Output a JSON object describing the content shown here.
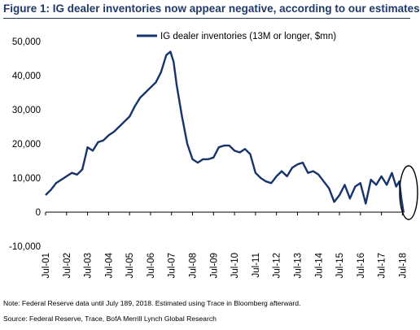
{
  "title": "Figure 1: IG dealer inventories now appear negative, according to our estimates",
  "note": "Note: Federal Reserve data until July 189, 2018. Estimated using Trace in Bloomberg afterward.",
  "source": "Source: Federal Reserve, Trace, BofA Merrill Lynch Global Research",
  "colors": {
    "series": "#16336b",
    "title": "#1f3a68"
  },
  "chart_data": {
    "type": "line",
    "title": "Figure 1: IG dealer inventories now appear negative, according to our estimates",
    "xlabel": "",
    "ylabel": "",
    "ylim": [
      -10000,
      50000
    ],
    "yticks": [
      -10000,
      0,
      10000,
      20000,
      30000,
      40000,
      50000
    ],
    "ytick_labels": [
      "-10,000",
      "0",
      "10,000",
      "20,000",
      "30,000",
      "40,000",
      "50,000"
    ],
    "xlim": [
      2001.5,
      2018.6
    ],
    "xticks": [
      2001.5,
      2002.5,
      2003.5,
      2004.5,
      2005.5,
      2006.5,
      2007.5,
      2008.5,
      2009.5,
      2010.5,
      2011.5,
      2012.5,
      2013.5,
      2014.5,
      2015.5,
      2016.5,
      2017.5,
      2018.5
    ],
    "xtick_labels": [
      "Jul-01",
      "Jul-02",
      "Jul-03",
      "Jul-04",
      "Jul-05",
      "Jul-06",
      "Jul-07",
      "Jul-08",
      "Jul-09",
      "Jul-10",
      "Jul-11",
      "Jul-12",
      "Jul-13",
      "Jul-14",
      "Jul-15",
      "Jul-16",
      "Jul-17",
      "Jul-18"
    ],
    "grid": false,
    "legend": "top-center",
    "annotation": "ellipse around the final values (mid-2018)",
    "series": [
      {
        "name": "IG dealer inventories (13M or longer, $mn)",
        "color": "#16336b",
        "x": [
          2001.5,
          2001.75,
          2002.0,
          2002.25,
          2002.5,
          2002.75,
          2003.0,
          2003.25,
          2003.5,
          2003.75,
          2004.0,
          2004.25,
          2004.5,
          2004.75,
          2005.0,
          2005.25,
          2005.5,
          2005.75,
          2006.0,
          2006.25,
          2006.5,
          2006.75,
          2007.0,
          2007.25,
          2007.45,
          2007.6,
          2007.75,
          2008.0,
          2008.25,
          2008.5,
          2008.75,
          2009.0,
          2009.25,
          2009.5,
          2009.75,
          2010.0,
          2010.25,
          2010.5,
          2010.75,
          2011.0,
          2011.25,
          2011.5,
          2011.75,
          2012.0,
          2012.25,
          2012.5,
          2012.75,
          2013.0,
          2013.25,
          2013.5,
          2013.75,
          2014.0,
          2014.25,
          2014.5,
          2014.75,
          2015.0,
          2015.25,
          2015.5,
          2015.75,
          2016.0,
          2016.25,
          2016.5,
          2016.75,
          2017.0,
          2017.25,
          2017.5,
          2017.75,
          2018.0,
          2018.2,
          2018.35,
          2018.45,
          2018.55
        ],
        "values": [
          5000,
          6500,
          8500,
          9500,
          10500,
          11500,
          11000,
          12500,
          19000,
          18000,
          20500,
          21000,
          22500,
          23500,
          25000,
          26500,
          28000,
          31000,
          33500,
          35000,
          36500,
          38000,
          41000,
          46000,
          47000,
          44000,
          37000,
          28000,
          20000,
          15500,
          14500,
          15500,
          15500,
          16000,
          19000,
          19500,
          19500,
          18000,
          17500,
          18500,
          17000,
          11500,
          10000,
          9000,
          8500,
          10500,
          12000,
          10500,
          13000,
          14000,
          14500,
          11500,
          12000,
          11000,
          9000,
          7000,
          3000,
          5000,
          8000,
          4000,
          7500,
          8500,
          2500,
          9500,
          8000,
          10500,
          8000,
          11500,
          7500,
          9000,
          4000,
          0
        ]
      }
    ]
  }
}
